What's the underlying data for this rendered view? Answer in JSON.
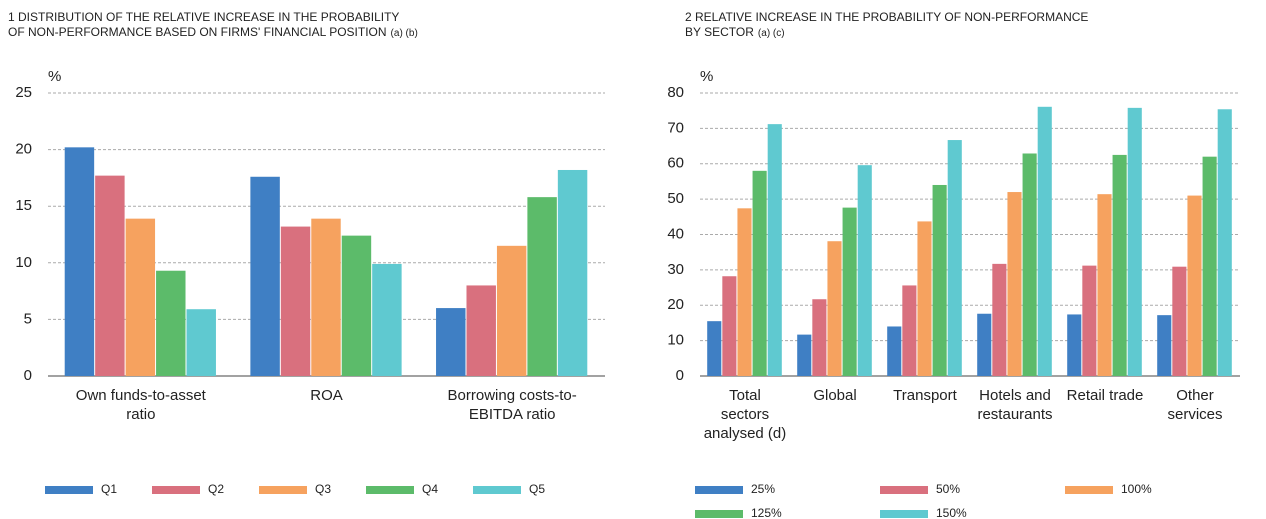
{
  "chart_data": [
    {
      "type": "bar",
      "title": [
        "1  DISTRIBUTION OF THE RELATIVE INCREASE IN THE PROBABILITY",
        "OF NON-PERFORMANCE BASED ON FIRMS' FINANCIAL POSITION"
      ],
      "title_notes": "(a) (b)",
      "y_label": "%",
      "categories": [
        [
          "Own funds-to-asset",
          "ratio"
        ],
        [
          "ROA"
        ],
        [
          "Borrowing costs-to-",
          "EBITDA ratio"
        ]
      ],
      "series": [
        {
          "name": "Q1",
          "color": "#3f7fc4",
          "values": [
            20.2,
            17.6,
            6.0
          ]
        },
        {
          "name": "Q2",
          "color": "#d9707e",
          "values": [
            17.7,
            13.2,
            8.0
          ]
        },
        {
          "name": "Q3",
          "color": "#f6a25f",
          "values": [
            13.9,
            13.9,
            11.5
          ]
        },
        {
          "name": "Q4",
          "color": "#5cbb6a",
          "values": [
            9.3,
            12.4,
            15.8
          ]
        },
        {
          "name": "Q5",
          "color": "#5fc9d0",
          "values": [
            5.9,
            9.9,
            18.2
          ]
        }
      ],
      "ylim": [
        0,
        25
      ],
      "yticks": [
        0,
        5,
        10,
        15,
        20,
        25
      ],
      "grid": true
    },
    {
      "type": "bar",
      "title": [
        "2  RELATIVE INCREASE IN THE PROBABILITY OF NON-PERFORMANCE",
        "BY SECTOR"
      ],
      "title_notes": "(a) (c)",
      "y_label": "%",
      "categories": [
        [
          "Total",
          "sectors",
          "analysed (d)"
        ],
        [
          "Global"
        ],
        [
          "Transport"
        ],
        [
          "Hotels and",
          "restaurants"
        ],
        [
          "Retail trade"
        ],
        [
          "Other",
          "services"
        ]
      ],
      "series": [
        {
          "name": "25%",
          "color": "#3f7fc4",
          "values": [
            15.5,
            11.7,
            14,
            17.6,
            17.4,
            17.2
          ]
        },
        {
          "name": "50%",
          "color": "#d9707e",
          "values": [
            28.2,
            21.7,
            25.6,
            31.7,
            31.2,
            30.9
          ]
        },
        {
          "name": "100%",
          "color": "#f6a25f",
          "values": [
            47.4,
            38.1,
            43.7,
            52,
            51.4,
            51
          ]
        },
        {
          "name": "125%",
          "color": "#5cbb6a",
          "values": [
            58,
            47.6,
            54,
            62.9,
            62.5,
            62
          ]
        },
        {
          "name": "150%",
          "color": "#5fc9d0",
          "values": [
            71.2,
            59.6,
            66.7,
            76.1,
            75.8,
            75.4
          ]
        }
      ],
      "ylim": [
        0,
        80
      ],
      "yticks": [
        0,
        10,
        20,
        30,
        40,
        50,
        60,
        70,
        80
      ],
      "grid": true
    }
  ]
}
